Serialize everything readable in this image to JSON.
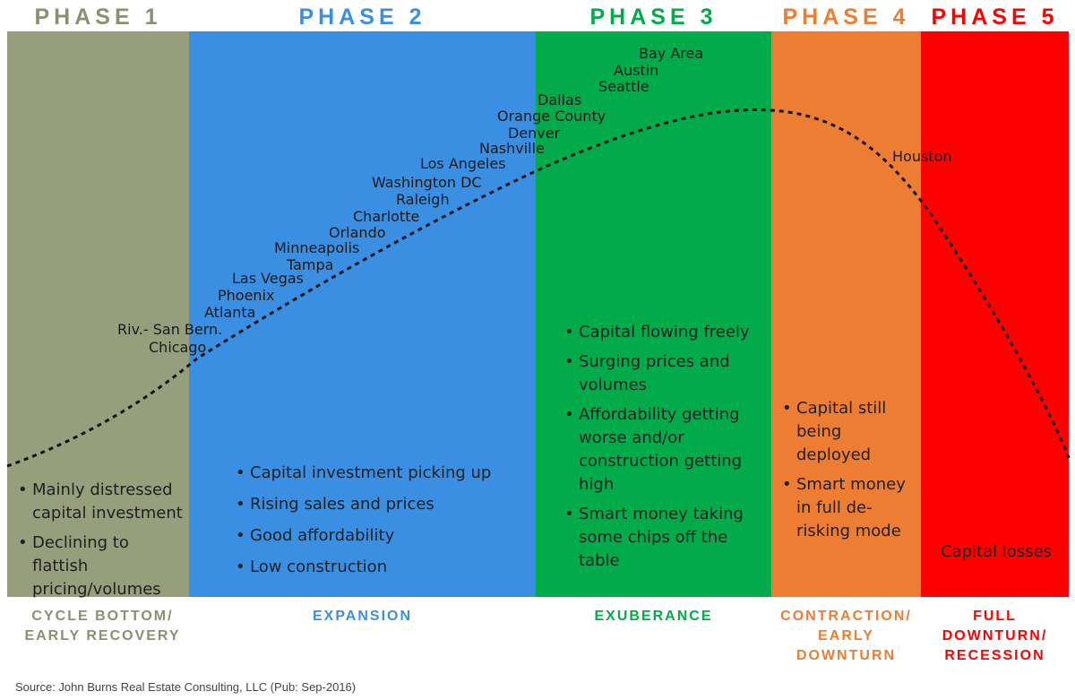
{
  "phases": [
    {
      "title": "PHASE 1",
      "color": "#969e7c",
      "title_color": "#8a9070",
      "label": [
        "CYCLE BOTTOM/",
        "EARLY RECOVERY"
      ],
      "bullets": [
        "Mainly distressed capital investment",
        "Declining to flattish pricing/volumes"
      ]
    },
    {
      "title": "PHASE 2",
      "color": "#3b8fe3",
      "title_color": "#3b8fe3",
      "label": [
        "EXPANSION"
      ],
      "bullets": [
        "Capital investment picking up",
        "Rising sales and prices",
        "Good affordability",
        "Low construction"
      ]
    },
    {
      "title": "PHASE 3",
      "color": "#02ab4a",
      "title_color": "#02ab4a",
      "label": [
        "EXUBERANCE"
      ],
      "bullets": [
        "Capital flowing freely",
        "Surging prices and volumes",
        "Affordability getting worse and/or construction getting high",
        "Smart money taking some chips off the table"
      ]
    },
    {
      "title": "PHASE 4",
      "color": "#ee7d34",
      "title_color": "#ee7d34",
      "label": [
        "CONTRACTION/",
        "EARLY",
        "DOWNTURN"
      ],
      "bullets": [
        "Capital still being deployed",
        "Smart money in full de-risking mode"
      ]
    },
    {
      "title": "PHASE 5",
      "color": "#fd0000",
      "title_color": "#fd0000",
      "label": [
        "FULL",
        "DOWNTURN/",
        "RECESSION"
      ],
      "bullets": [],
      "note": "Capital losses"
    }
  ],
  "cities": [
    "Bay Area",
    "Austin",
    "Seattle",
    "Dallas",
    "Orange County",
    "Denver",
    "Nashville",
    "Los Angeles",
    "Washington DC",
    "Raleigh",
    "Charlotte",
    "Orlando",
    "Minneapolis",
    "Tampa",
    "Las Vegas",
    "Phoenix",
    "Atlanta",
    "Riv.- San Bern.",
    "Chicago",
    "Houston"
  ],
  "source": "Source: John Burns Real Estate Consulting, LLC (Pub: Sep-2016)"
}
